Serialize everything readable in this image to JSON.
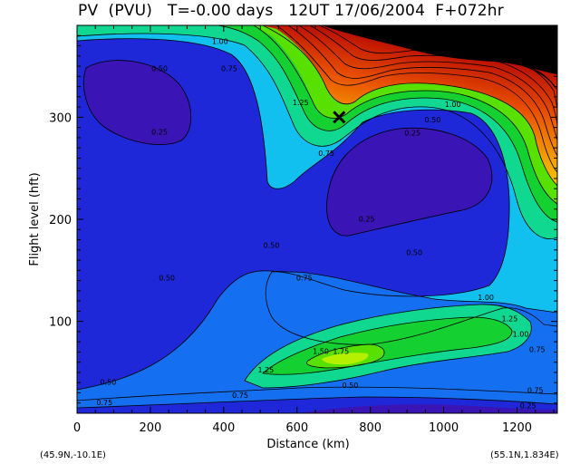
{
  "title": "PV  (PVU)   T=-0.00 days   12UT 17/06/2004  F+072hr",
  "chart_data": {
    "type": "contour",
    "field": "PV",
    "units": "PVU",
    "xlabel": "Distance  (km)",
    "ylabel": "Flight level  (hft)",
    "xlim": [
      0,
      1310
    ],
    "ylim": [
      10,
      390
    ],
    "x_ticks": [
      "0",
      "200",
      "400",
      "600",
      "800",
      "1000",
      "1200"
    ],
    "y_ticks": [
      "100",
      "200",
      "300"
    ],
    "start_label": "(45.9N,-10.1E)",
    "end_label": "(55.1N,1.834E)",
    "marker": {
      "x": 715,
      "y": 300,
      "symbol": "X"
    },
    "contour_labels": [
      {
        "text": "1.00",
        "x": 390,
        "y": 372
      },
      {
        "text": "0.50",
        "x": 225,
        "y": 345
      },
      {
        "text": "0.75",
        "x": 415,
        "y": 345
      },
      {
        "text": "0.25",
        "x": 225,
        "y": 283
      },
      {
        "text": "1.25",
        "x": 610,
        "y": 312
      },
      {
        "text": "0.75",
        "x": 680,
        "y": 262
      },
      {
        "text": "1.00",
        "x": 1025,
        "y": 310
      },
      {
        "text": "0.50",
        "x": 970,
        "y": 295
      },
      {
        "text": "0.25",
        "x": 915,
        "y": 282
      },
      {
        "text": "0.25",
        "x": 790,
        "y": 198
      },
      {
        "text": "0.50",
        "x": 530,
        "y": 172
      },
      {
        "text": "0.50",
        "x": 920,
        "y": 165
      },
      {
        "text": "0.50",
        "x": 245,
        "y": 140
      },
      {
        "text": "0.75",
        "x": 620,
        "y": 140
      },
      {
        "text": "1.00",
        "x": 1115,
        "y": 121
      },
      {
        "text": "1.25",
        "x": 1180,
        "y": 100
      },
      {
        "text": "1.00",
        "x": 1210,
        "y": 85
      },
      {
        "text": "0.75",
        "x": 1255,
        "y": 70
      },
      {
        "text": "1.50",
        "x": 665,
        "y": 68
      },
      {
        "text": "1.75",
        "x": 720,
        "y": 68
      },
      {
        "text": "1.25",
        "x": 515,
        "y": 50
      },
      {
        "text": "0.50",
        "x": 85,
        "y": 38
      },
      {
        "text": "0.75",
        "x": 1250,
        "y": 30
      },
      {
        "text": "0.50",
        "x": 745,
        "y": 35
      },
      {
        "text": "0.75",
        "x": 445,
        "y": 25
      },
      {
        "text": "0.75",
        "x": 75,
        "y": 18
      },
      {
        "text": "0.25",
        "x": 1230,
        "y": 15
      }
    ],
    "colors": {
      "level_0": "#3a14b4",
      "level_1": "#1e28d8",
      "level_2": "#1470f0",
      "level_3": "#12c0f0",
      "level_4": "#10d890",
      "level_5": "#14d030",
      "level_6": "#58e000",
      "level_7": "#b4f000",
      "high_gradient": [
        "#80e800",
        "#f0e000",
        "#f4a000",
        "#e85000",
        "#c82000",
        "#aa0000"
      ],
      "masked": "#000000"
    }
  }
}
